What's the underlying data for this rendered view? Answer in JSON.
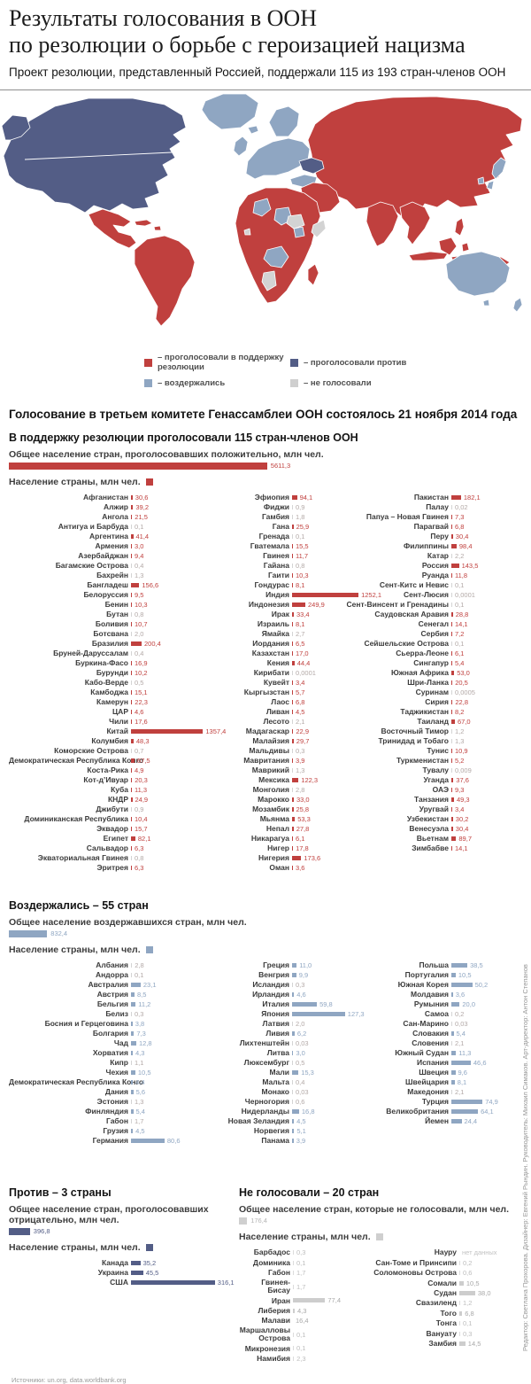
{
  "header": {
    "title_line1": "Результаты голосования в ООН",
    "title_line2": "по резолюции о борьбе с героизацией нацизма",
    "subtitle": "Проект резолюции, представленный Россией, поддержали 115 из 193 стран-членов ООН"
  },
  "colors": {
    "support": "#c0403e",
    "against": "#535d86",
    "abstain": "#8fa6c2",
    "novote": "#cfcfcf"
  },
  "legend": {
    "items": [
      {
        "key": "support",
        "label": "– проголосовали в поддержку резолюции"
      },
      {
        "key": "against",
        "label": "– проголосовали против"
      },
      {
        "key": "abstain",
        "label": "– воздержались"
      },
      {
        "key": "novote",
        "label": "– не голосовали"
      }
    ]
  },
  "intro": "Голосование в третьем комитете Генассамблеи ООН состоялось 21 ноября 2014 года",
  "chart_data": [
    {
      "type": "bar",
      "id": "support",
      "title": "В поддержку резолюции проголосовали 115 стран-членов ООН",
      "total_label": "Общее население стран, проголосовавших положительно, млн чел.",
      "total_value": "5611,3",
      "unit_label": "Население страны, млн чел.",
      "columns": [
        [
          [
            "Афганистан",
            "30,6"
          ],
          [
            "Алжир",
            "39,2"
          ],
          [
            "Ангола",
            "21,5"
          ],
          [
            "Антигуа и Барбуда",
            "0,1"
          ],
          [
            "Аргентина",
            "41,4"
          ],
          [
            "Армения",
            "3,0"
          ],
          [
            "Азербайджан",
            "9,4"
          ],
          [
            "Багамские Острова",
            "0,4"
          ],
          [
            "Бахрейн",
            "1,3"
          ],
          [
            "Бангладеш",
            "156,6"
          ],
          [
            "Белоруссия",
            "9,5"
          ],
          [
            "Бенин",
            "10,3"
          ],
          [
            "Бутан",
            "0,8"
          ],
          [
            "Боливия",
            "10,7"
          ],
          [
            "Ботсвана",
            "2,0"
          ],
          [
            "Бразилия",
            "200,4"
          ],
          [
            "Бруней-Даруссалам",
            "0,4"
          ],
          [
            "Буркина-Фасо",
            "16,9"
          ],
          [
            "Бурунди",
            "10,2"
          ],
          [
            "Кабо-Верде",
            "0,5"
          ],
          [
            "Камбоджа",
            "15,1"
          ],
          [
            "Камерун",
            "22,3"
          ],
          [
            "ЦАР",
            "4,6"
          ],
          [
            "Чили",
            "17,6"
          ],
          [
            "Китай",
            "1357,4"
          ],
          [
            "Колумбия",
            "48,3"
          ],
          [
            "Коморские Острова",
            "0,7"
          ],
          [
            "Демократическая Республика Конго",
            "67,5"
          ],
          [
            "Коста-Рика",
            "4,9"
          ],
          [
            "Кот-д’Ивуар",
            "20,3"
          ],
          [
            "Куба",
            "11,3"
          ],
          [
            "КНДР",
            "24,9"
          ],
          [
            "Джибути",
            "0,9"
          ],
          [
            "Доминиканская Республика",
            "10,4"
          ],
          [
            "Эквадор",
            "15,7"
          ],
          [
            "Египет",
            "82,1"
          ],
          [
            "Сальвадор",
            "6,3"
          ],
          [
            "Экваториальная Гвинея",
            "0,8"
          ],
          [
            "Эритрея",
            "6,3"
          ]
        ],
        [
          [
            "Эфиопия",
            "94,1"
          ],
          [
            "Фиджи",
            "0,9"
          ],
          [
            "Гамбия",
            "1,8"
          ],
          [
            "Гана",
            "25,9"
          ],
          [
            "Гренада",
            "0,1"
          ],
          [
            "Гватемала",
            "15,5"
          ],
          [
            "Гвинея",
            "11,7"
          ],
          [
            "Гайана",
            "0,8"
          ],
          [
            "Гаити",
            "10,3"
          ],
          [
            "Гондурас",
            "8,1"
          ],
          [
            "Индия",
            "1252,1"
          ],
          [
            "Индонезия",
            "249,9"
          ],
          [
            "Ирак",
            "33,4"
          ],
          [
            "Израиль",
            "8,1"
          ],
          [
            "Ямайка",
            "2,7"
          ],
          [
            "Иордания",
            "6,5"
          ],
          [
            "Казахстан",
            "17,0"
          ],
          [
            "Кения",
            "44,4"
          ],
          [
            "Кирибати",
            "0,0001"
          ],
          [
            "Кувейт",
            "3,4"
          ],
          [
            "Кыргызстан",
            "5,7"
          ],
          [
            "Лаос",
            "6,8"
          ],
          [
            "Ливан",
            "4,5"
          ],
          [
            "Лесото",
            "2,1"
          ],
          [
            "Мадагаскар",
            "22,9"
          ],
          [
            "Малайзия",
            "29,7"
          ],
          [
            "Мальдивы",
            "0,3"
          ],
          [
            "Мавритания",
            "3,9"
          ],
          [
            "Маврикий",
            "1,3"
          ],
          [
            "Мексика",
            "122,3"
          ],
          [
            "Монголия",
            "2,8"
          ],
          [
            "Марокко",
            "33,0"
          ],
          [
            "Мозамбик",
            "25,8"
          ],
          [
            "Мьянма",
            "53,3"
          ],
          [
            "Непал",
            "27,8"
          ],
          [
            "Никарагуа",
            "6,1"
          ],
          [
            "Нигер",
            "17,8"
          ],
          [
            "Нигерия",
            "173,6"
          ],
          [
            "Оман",
            "3,6"
          ]
        ],
        [
          [
            "Пакистан",
            "182,1"
          ],
          [
            "Палау",
            "0,02"
          ],
          [
            "Папуа – Новая Гвинея",
            "7,3"
          ],
          [
            "Парагвай",
            "6,8"
          ],
          [
            "Перу",
            "30,4"
          ],
          [
            "Филиппины",
            "98,4"
          ],
          [
            "Катар",
            "2,2"
          ],
          [
            "Россия",
            "143,5"
          ],
          [
            "Руанда",
            "11,8"
          ],
          [
            "Сент-Китс и Невис",
            "0,1"
          ],
          [
            "Сент-Люсия",
            "0,0001"
          ],
          [
            "Сент-Винсент и Гренадины",
            "0,1"
          ],
          [
            "Саудовская Аравия",
            "28,8"
          ],
          [
            "Сенегал",
            "14,1"
          ],
          [
            "Сербия",
            "7,2"
          ],
          [
            "Сейшельские Острова",
            "0,1"
          ],
          [
            "Сьерра-Леоне",
            "6,1"
          ],
          [
            "Сингапур",
            "5,4"
          ],
          [
            "Южная Африка",
            "53,0"
          ],
          [
            "Шри-Ланка",
            "20,5"
          ],
          [
            "Суринам",
            "0,0005"
          ],
          [
            "Сирия",
            "22,8"
          ],
          [
            "Таджикистан",
            "8,2"
          ],
          [
            "Таиланд",
            "67,0"
          ],
          [
            "Восточный Тимор",
            "1,2"
          ],
          [
            "Тринидад и Тобаго",
            "1,3"
          ],
          [
            "Тунис",
            "10,9"
          ],
          [
            "Туркменистан",
            "5,2"
          ],
          [
            "Тувалу",
            "0,009"
          ],
          [
            "Уганда",
            "37,6"
          ],
          [
            "ОАЭ",
            "9,3"
          ],
          [
            "Танзания",
            "49,3"
          ],
          [
            "Уругвай",
            "3,4"
          ],
          [
            "Узбекистан",
            "30,2"
          ],
          [
            "Венесуэла",
            "30,4"
          ],
          [
            "Вьетнам",
            "89,7"
          ],
          [
            "Зимбабве",
            "14,1"
          ]
        ]
      ]
    },
    {
      "type": "bar",
      "id": "abstain",
      "title": "Воздержались – 55 стран",
      "total_label": "Общее население воздержавшихся стран, млн чел.",
      "total_value": "832,4",
      "unit_label": "Население страны, млн чел.",
      "columns": [
        [
          [
            "Албания",
            "2,8"
          ],
          [
            "Андорра",
            "0,1"
          ],
          [
            "Австралия",
            "23,1"
          ],
          [
            "Австрия",
            "8,5"
          ],
          [
            "Бельгия",
            "11,2"
          ],
          [
            "Белиз",
            "0,3"
          ],
          [
            "Босния и Герцеговина",
            "3,8"
          ],
          [
            "Болгария",
            "7,3"
          ],
          [
            "Чад",
            "12,8"
          ],
          [
            "Хорватия",
            "4,3"
          ],
          [
            "Кипр",
            "1,1"
          ],
          [
            "Чехия",
            "10,5"
          ],
          [
            "Демократическая Республика Конго",
            "4,4"
          ],
          [
            "Дания",
            "5,6"
          ],
          [
            "Эстония",
            "1,3"
          ],
          [
            "Финляндия",
            "5,4"
          ],
          [
            "Габон",
            "1,7"
          ],
          [
            "Грузия",
            "4,5"
          ],
          [
            "Германия",
            "80,6"
          ]
        ],
        [
          [
            "Греция",
            "11,0"
          ],
          [
            "Венгрия",
            "9,9"
          ],
          [
            "Исландия",
            "0,3"
          ],
          [
            "Ирландия",
            "4,6"
          ],
          [
            "Италия",
            "59,8"
          ],
          [
            "Япония",
            "127,3"
          ],
          [
            "Латвия",
            "2,0"
          ],
          [
            "Ливия",
            "6,2"
          ],
          [
            "Лихтенштейн",
            "0,03"
          ],
          [
            "Литва",
            "3,0"
          ],
          [
            "Люксембург",
            "0,5"
          ],
          [
            "Мали",
            "15,3"
          ],
          [
            "Мальта",
            "0,4"
          ],
          [
            "Монако",
            "0,03"
          ],
          [
            "Черногория",
            "0,6"
          ],
          [
            "Нидерланды",
            "16,8"
          ],
          [
            "Новая Зеландия",
            "4,5"
          ],
          [
            "Норвегия",
            "5,1"
          ],
          [
            "Панама",
            "3,9"
          ]
        ],
        [
          [
            "Польша",
            "38,5"
          ],
          [
            "Португалия",
            "10,5"
          ],
          [
            "Южная Корея",
            "50,2"
          ],
          [
            "Молдавия",
            "3,6"
          ],
          [
            "Румыния",
            "20,0"
          ],
          [
            "Самоа",
            "0,2"
          ],
          [
            "Сан-Марино",
            "0,03"
          ],
          [
            "Словакия",
            "5,4"
          ],
          [
            "Словения",
            "2,1"
          ],
          [
            "Южный Судан",
            "11,3"
          ],
          [
            "Испания",
            "46,6"
          ],
          [
            "Швеция",
            "9,6"
          ],
          [
            "Швейцария",
            "8,1"
          ],
          [
            "Македония",
            "2,1"
          ],
          [
            "Турция",
            "74,9"
          ],
          [
            "Великобритания",
            "64,1"
          ],
          [
            "Йемен",
            "24,4"
          ]
        ]
      ]
    },
    {
      "type": "bar",
      "id": "against",
      "title": "Против – 3 страны",
      "total_label": "Общее население стран, проголосовавших отрицательно, млн чел.",
      "total_value": "396,8",
      "unit_label": "Население страны, млн чел.",
      "columns": [
        [
          [
            "Канада",
            "35,2"
          ],
          [
            "Украина",
            "45,5"
          ],
          [
            "США",
            "316,1"
          ]
        ]
      ]
    },
    {
      "type": "bar",
      "id": "novote",
      "title": "Не голосовали – 20 стран",
      "total_label": "Общее население стран, которые не голосовали, млн чел.",
      "total_value": "176,4",
      "unit_label": "Население страны, млн чел.",
      "columns": [
        [
          [
            "Барбадос",
            "0,3"
          ],
          [
            "Доминика",
            "0,1"
          ],
          [
            "Габон",
            "1,7"
          ],
          [
            "Гвинея-Бисау",
            "1,7"
          ],
          [
            "Иран",
            "77,4"
          ],
          [
            "Либерия",
            "4,3"
          ],
          [
            "Малави",
            "16,4",
            "nobar"
          ],
          [
            "Маршалловы Острова",
            "0,1"
          ],
          [
            "Микронезия",
            "0,1"
          ],
          [
            "Намибия",
            "2,3"
          ]
        ],
        [
          [
            "Науру",
            "нет данных"
          ],
          [
            "Сан-Томе и Принсипи",
            "0,2"
          ],
          [
            "Соломоновы Острова",
            "0,6"
          ],
          [
            "Сомали",
            "10,5"
          ],
          [
            "Судан",
            "38,0"
          ],
          [
            "Свазиленд",
            "1,2"
          ],
          [
            "Того",
            "6,8"
          ],
          [
            "Тонга",
            "0,1"
          ],
          [
            "Вануату",
            "0,3"
          ],
          [
            "Замбия",
            "14,5"
          ]
        ]
      ]
    }
  ],
  "footer": {
    "source": "Источники: un.org, data.worldbank.org",
    "credits": "Редактор: Светлана Прохорова. Дизайнер: Евгений Рындин. Руководитель: Михаил Симаков. Арт-директор: Антон Степанов"
  }
}
